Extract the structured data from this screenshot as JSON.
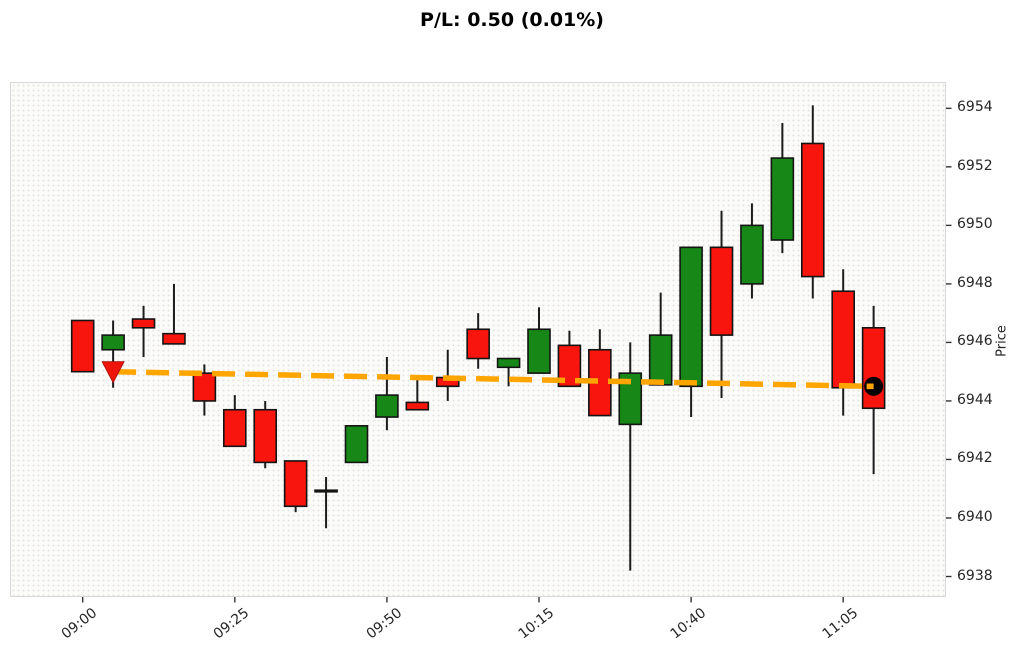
{
  "title": "P/L: 0.50 (0.01%)",
  "chart_data": {
    "type": "candlestick",
    "title": "P/L: 0.50 (0.01%)",
    "xlabel": "",
    "ylabel": "Price",
    "grid": "off",
    "legend": "off",
    "y_axis_side": "right",
    "ylim": [
      6937.3,
      6954.9
    ],
    "y_ticks": [
      6938,
      6940,
      6942,
      6944,
      6946,
      6948,
      6950,
      6952,
      6954
    ],
    "x_tick_labels": [
      "09:00",
      "09:25",
      "09:50",
      "10:15",
      "10:40",
      "11:05"
    ],
    "x_tick_indices": [
      0,
      5,
      10,
      15,
      20,
      25
    ],
    "colors": {
      "up": "#178717",
      "down": "#f7150d",
      "wick": "#1c1c1c",
      "body_border": "#141414",
      "entry_line": "#ffa500",
      "entry_marker": "#ee1409",
      "current_marker": "#000000",
      "tick": "#333333"
    },
    "candles": [
      {
        "time": "09:00",
        "open": 6946.75,
        "high": 6946.75,
        "low": 6945.0,
        "close": 6945.0
      },
      {
        "time": "09:05",
        "open": 6945.75,
        "high": 6946.75,
        "low": 6944.45,
        "close": 6946.25
      },
      {
        "time": "09:10",
        "open": 6946.8,
        "high": 6947.25,
        "low": 6945.5,
        "close": 6946.5
      },
      {
        "time": "09:15",
        "open": 6946.3,
        "high": 6948.0,
        "low": 6945.95,
        "close": 6945.95
      },
      {
        "time": "09:20",
        "open": 6944.95,
        "high": 6945.25,
        "low": 6943.5,
        "close": 6944.0
      },
      {
        "time": "09:25",
        "open": 6943.7,
        "high": 6944.2,
        "low": 6942.45,
        "close": 6942.45
      },
      {
        "time": "09:30",
        "open": 6943.7,
        "high": 6944.0,
        "low": 6941.7,
        "close": 6941.9
      },
      {
        "time": "09:35",
        "open": 6941.95,
        "high": 6941.95,
        "low": 6940.2,
        "close": 6940.4
      },
      {
        "time": "09:40",
        "open": 6940.95,
        "high": 6941.4,
        "low": 6939.65,
        "close": 6940.9
      },
      {
        "time": "09:45",
        "open": 6941.9,
        "high": 6943.15,
        "low": 6941.9,
        "close": 6943.15
      },
      {
        "time": "09:50",
        "open": 6943.45,
        "high": 6945.5,
        "low": 6943.0,
        "close": 6944.2
      },
      {
        "time": "09:55",
        "open": 6943.95,
        "high": 6944.75,
        "low": 6943.7,
        "close": 6943.7
      },
      {
        "time": "10:00",
        "open": 6944.8,
        "high": 6945.75,
        "low": 6944.0,
        "close": 6944.5
      },
      {
        "time": "10:05",
        "open": 6946.45,
        "high": 6947.0,
        "low": 6945.1,
        "close": 6945.45
      },
      {
        "time": "10:10",
        "open": 6945.15,
        "high": 6945.45,
        "low": 6944.5,
        "close": 6945.45
      },
      {
        "time": "10:15",
        "open": 6944.95,
        "high": 6947.2,
        "low": 6944.95,
        "close": 6946.45
      },
      {
        "time": "10:20",
        "open": 6945.9,
        "high": 6946.4,
        "low": 6944.5,
        "close": 6944.5
      },
      {
        "time": "10:25",
        "open": 6945.75,
        "high": 6946.45,
        "low": 6943.5,
        "close": 6943.5
      },
      {
        "time": "10:30",
        "open": 6943.2,
        "high": 6946.0,
        "low": 6938.2,
        "close": 6944.95
      },
      {
        "time": "10:35",
        "open": 6944.55,
        "high": 6947.7,
        "low": 6944.55,
        "close": 6946.25
      },
      {
        "time": "10:40",
        "open": 6944.5,
        "high": 6949.25,
        "low": 6943.45,
        "close": 6949.25
      },
      {
        "time": "10:45",
        "open": 6949.25,
        "high": 6950.5,
        "low": 6944.1,
        "close": 6946.25
      },
      {
        "time": "10:50",
        "open": 6948.0,
        "high": 6950.75,
        "low": 6947.5,
        "close": 6950.0
      },
      {
        "time": "10:55",
        "open": 6949.5,
        "high": 6953.5,
        "low": 6949.05,
        "close": 6952.3
      },
      {
        "time": "11:00",
        "open": 6952.8,
        "high": 6954.1,
        "low": 6947.5,
        "close": 6948.25
      },
      {
        "time": "11:05",
        "open": 6947.75,
        "high": 6948.5,
        "low": 6943.5,
        "close": 6944.45
      },
      {
        "time": "11:10",
        "open": 6946.5,
        "high": 6947.25,
        "low": 6941.5,
        "close": 6943.75
      }
    ],
    "overlays": {
      "entry_line": {
        "from_time": "09:05",
        "from_price": 6945.0,
        "to_time": "11:10",
        "to_price": 6944.5,
        "style": "dashed",
        "color": "#ffa500"
      },
      "entry_marker": {
        "time": "09:05",
        "price": 6945.0,
        "shape": "triangle-down",
        "color": "#ee1409",
        "meaning": "sell entry"
      },
      "current_marker": {
        "time": "11:10",
        "price": 6944.5,
        "shape": "circle",
        "color": "#000000",
        "meaning": "current position"
      }
    }
  }
}
